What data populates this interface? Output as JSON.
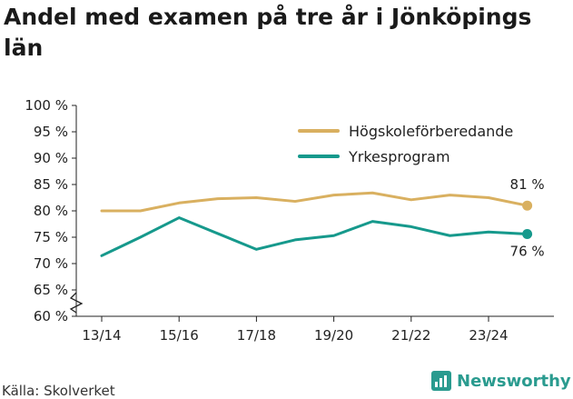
{
  "title": "Andel med examen på tre år i Jönköpings län",
  "source": "Källa: Skolverket",
  "brand": "Newsworthy",
  "colors": {
    "hogskole": "#d9b060",
    "yrkes": "#16998c",
    "axis": "#222222",
    "brand": "#2a9b8f"
  },
  "chart_data": {
    "type": "line",
    "title": "Andel med examen på tre år i Jönköpings län",
    "x": [
      "13/14",
      "14/15",
      "15/16",
      "16/17",
      "17/18",
      "18/19",
      "19/20",
      "20/21",
      "21/22",
      "22/23",
      "23/24",
      "24/25"
    ],
    "x_tick_labels": [
      "13/14",
      "15/16",
      "17/18",
      "19/20",
      "21/22",
      "23/24"
    ],
    "ylim": [
      60,
      100
    ],
    "y_tick_labels": [
      "100 %",
      "95 %",
      "90 %",
      "85 %",
      "80 %",
      "75 %",
      "70 %",
      "65 %",
      "60 %"
    ],
    "y_axis_break": true,
    "grid": false,
    "legend_position": "top-right",
    "series": [
      {
        "name": "Högskoleförberedande",
        "color": "#d9b060",
        "values": [
          80,
          80,
          81.5,
          82.3,
          82.5,
          81.8,
          83,
          83.4,
          82.1,
          83,
          82.5,
          81
        ],
        "end_label": "81 %"
      },
      {
        "name": "Yrkesprogram",
        "color": "#16998c",
        "values": [
          71.5,
          75,
          78.7,
          75.7,
          72.7,
          74.5,
          75.3,
          78,
          77,
          75.3,
          76,
          75.6
        ],
        "end_label": "76 %"
      }
    ]
  }
}
